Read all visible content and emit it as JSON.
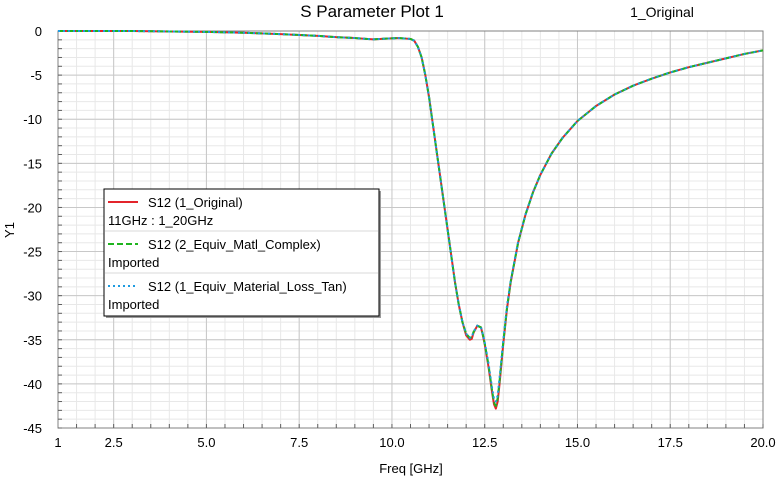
{
  "chart_data": {
    "type": "line",
    "title": "S Parameter Plot 1",
    "design_name": "1_Original",
    "xlabel": "Freq [GHz]",
    "ylabel": "Y1",
    "xlim": [
      1,
      20
    ],
    "ylim": [
      -45,
      0
    ],
    "x_ticks": [
      1,
      2.5,
      5.0,
      7.5,
      10.0,
      12.5,
      15.0,
      17.5,
      20.0
    ],
    "x_tick_labels": [
      "1",
      "2.5",
      "5.0",
      "7.5",
      "10.0",
      "12.5",
      "15.0",
      "17.5",
      "20.0"
    ],
    "y_ticks": [
      0,
      -5,
      -10,
      -15,
      -20,
      -25,
      -30,
      -35,
      -40,
      -45
    ],
    "y_tick_labels": [
      "0",
      "-5",
      "-10",
      "-15",
      "-20",
      "-25",
      "-30",
      "-35",
      "-40",
      "-45"
    ],
    "grid": true,
    "legend_position": "left-middle",
    "x": [
      1.0,
      2.0,
      3.0,
      4.0,
      5.0,
      6.0,
      7.0,
      7.5,
      8.0,
      8.5,
      9.0,
      9.5,
      9.9,
      10.2,
      10.5,
      10.6,
      10.7,
      10.8,
      10.9,
      11.0,
      11.1,
      11.2,
      11.3,
      11.4,
      11.5,
      11.6,
      11.7,
      11.8,
      11.9,
      12.0,
      12.1,
      12.15,
      12.2,
      12.3,
      12.4,
      12.45,
      12.5,
      12.6,
      12.7,
      12.75,
      12.8,
      12.85,
      12.9,
      13.0,
      13.1,
      13.2,
      13.4,
      13.6,
      13.8,
      14.0,
      14.3,
      14.6,
      15.0,
      15.5,
      16.0,
      16.5,
      17.0,
      17.5,
      18.0,
      18.5,
      19.0,
      19.5,
      20.0
    ],
    "series": [
      {
        "name": "S12 (1_Original)",
        "sweep": "11GHz : 1_20GHz",
        "color": "#e3242b",
        "dash": "solid",
        "y": [
          0.0,
          0.0,
          0.0,
          -0.05,
          -0.1,
          -0.2,
          -0.35,
          -0.45,
          -0.55,
          -0.7,
          -0.8,
          -0.95,
          -0.85,
          -0.8,
          -0.9,
          -1.1,
          -1.8,
          -3.0,
          -5.0,
          -7.5,
          -10.5,
          -13.5,
          -16.5,
          -19.5,
          -22.5,
          -25.5,
          -28.5,
          -31.0,
          -33.0,
          -34.5,
          -35.0,
          -34.9,
          -34.2,
          -33.4,
          -33.6,
          -34.5,
          -35.5,
          -38.0,
          -41.0,
          -42.3,
          -42.8,
          -42.0,
          -40.0,
          -35.5,
          -31.5,
          -28.5,
          -24.0,
          -20.8,
          -18.3,
          -16.3,
          -13.9,
          -12.1,
          -10.2,
          -8.5,
          -7.2,
          -6.2,
          -5.4,
          -4.7,
          -4.1,
          -3.6,
          -3.1,
          -2.6,
          -2.2
        ]
      },
      {
        "name": "S12 (2_Equiv_Matl_Complex)",
        "sweep": "Imported",
        "color": "#1fb41f",
        "dash": "dashed",
        "y": [
          0.0,
          0.0,
          0.0,
          -0.05,
          -0.1,
          -0.2,
          -0.35,
          -0.45,
          -0.55,
          -0.7,
          -0.8,
          -0.95,
          -0.85,
          -0.8,
          -0.9,
          -1.1,
          -1.8,
          -3.0,
          -5.0,
          -7.5,
          -10.5,
          -13.5,
          -16.5,
          -19.5,
          -22.5,
          -25.5,
          -28.5,
          -31.0,
          -33.0,
          -34.3,
          -34.8,
          -34.7,
          -34.1,
          -33.4,
          -33.6,
          -34.4,
          -35.4,
          -37.8,
          -40.8,
          -42.1,
          -42.5,
          -41.6,
          -39.7,
          -35.3,
          -31.4,
          -28.4,
          -24.0,
          -20.8,
          -18.3,
          -16.3,
          -13.9,
          -12.1,
          -10.2,
          -8.5,
          -7.2,
          -6.2,
          -5.4,
          -4.7,
          -4.1,
          -3.6,
          -3.1,
          -2.6,
          -2.2
        ]
      },
      {
        "name": "S12 (1_Equiv_Material_Loss_Tan)",
        "sweep": "Imported",
        "color": "#1e9be0",
        "dash": "dotted",
        "y": [
          0.0,
          0.0,
          0.0,
          -0.05,
          -0.1,
          -0.2,
          -0.35,
          -0.45,
          -0.55,
          -0.7,
          -0.8,
          -0.95,
          -0.85,
          -0.8,
          -0.9,
          -1.1,
          -1.8,
          -3.0,
          -5.0,
          -7.5,
          -10.5,
          -13.5,
          -16.5,
          -19.5,
          -22.5,
          -25.5,
          -28.5,
          -31.0,
          -33.0,
          -34.3,
          -34.8,
          -34.7,
          -34.1,
          -33.4,
          -33.6,
          -34.4,
          -35.3,
          -37.6,
          -40.5,
          -41.7,
          -42.0,
          -41.3,
          -39.3,
          -35.1,
          -31.2,
          -28.3,
          -23.9,
          -20.8,
          -18.3,
          -16.3,
          -13.9,
          -12.1,
          -10.2,
          -8.5,
          -7.2,
          -6.2,
          -5.4,
          -4.7,
          -4.1,
          -3.6,
          -3.1,
          -2.6,
          -2.2
        ]
      }
    ]
  }
}
